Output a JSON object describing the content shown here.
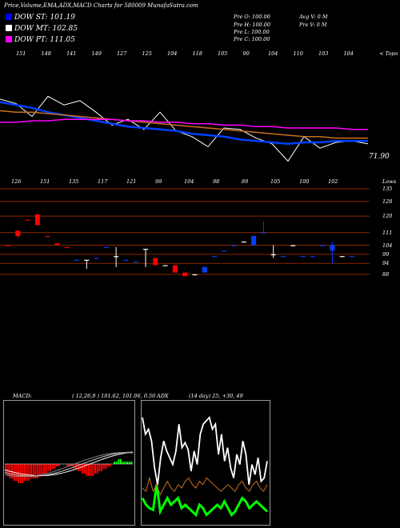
{
  "header": {
    "title": "Price,Volume,EMA,ADX,MACD Charts for 580009 MunafaSutra.com"
  },
  "dow": [
    {
      "label": "DOW ST: 101.19",
      "color": "#0000ff"
    },
    {
      "label": "DOW MT: 102.85",
      "color": "#ffffff"
    },
    {
      "label": "DOW PT: 111.05",
      "color": "#ff00ff"
    }
  ],
  "ohlc": {
    "o": "Pre  O: 100.00",
    "h": "Pre  H: 100.00",
    "l": "Pre  L: 100.00",
    "c": "Pre  C: 100.00"
  },
  "volume_info": {
    "avg": "Avg V: 0  M",
    "pre": "Pre  V: 0  M"
  },
  "top_tick_label": "< Topo",
  "bottom_tick_label": "Lows",
  "price_label": "71.90",
  "chart_data": [
    {
      "type": "line",
      "name": "ema-price-panel",
      "top_labels": [
        "151",
        "148",
        "141",
        "149",
        "127",
        "125",
        "104",
        "118",
        "105",
        "90",
        "104",
        "110",
        "103",
        "104"
      ],
      "bottom_labels": [
        "126",
        "151",
        "135",
        "117",
        "121",
        "99",
        "104",
        "98",
        "89",
        "105",
        "100",
        "102"
      ],
      "right_axis_ticks": [
        "135",
        "128",
        "120",
        "111",
        "104",
        "99",
        "94",
        "88"
      ],
      "series": [
        {
          "color": "#ffffff",
          "values": [
            130,
            127,
            118,
            132,
            126,
            129,
            121,
            112,
            116,
            109,
            121,
            108,
            104,
            97,
            110,
            109,
            103,
            99,
            87,
            104,
            96,
            100,
            101,
            99
          ]
        },
        {
          "color": "#0040ff",
          "values": [
            128,
            126,
            124,
            121,
            119,
            117,
            115,
            113,
            111,
            110,
            109,
            108,
            106,
            105,
            104,
            102,
            101,
            100,
            99,
            100,
            100,
            101,
            101,
            101
          ]
        },
        {
          "color": "#c87020",
          "values": [
            122,
            121,
            121,
            120,
            119,
            118,
            117,
            116,
            115,
            114,
            113,
            112,
            111,
            110,
            109,
            108,
            107,
            106,
            105,
            104,
            104,
            103,
            103,
            103
          ]
        },
        {
          "color": "#ff00ff",
          "values": [
            114,
            114,
            115,
            115,
            116,
            116,
            116,
            116,
            115,
            115,
            114,
            114,
            113,
            113,
            112,
            112,
            111,
            111,
            110,
            110,
            110,
            110,
            109,
            109
          ]
        }
      ]
    },
    {
      "type": "candlestick",
      "name": "price-candles",
      "yticks": [
        135,
        128,
        120,
        111,
        104,
        99,
        94,
        88
      ],
      "candles": [
        {
          "o": 104,
          "c": 104,
          "h": 104,
          "l": 104,
          "color": "#ff0000"
        },
        {
          "o": 112,
          "c": 109,
          "h": 112,
          "l": 108,
          "color": "#ff0000"
        },
        {
          "o": 118,
          "c": 118,
          "h": 118,
          "l": 118,
          "color": "#ff0000"
        },
        {
          "o": 121,
          "c": 115,
          "h": 121,
          "l": 115,
          "color": "#ff0000"
        },
        {
          "o": 109,
          "c": 109,
          "h": 109,
          "l": 109,
          "color": "#ff0000"
        },
        {
          "o": 105,
          "c": 104,
          "h": 105,
          "l": 104,
          "color": "#ff0000"
        },
        {
          "o": 103,
          "c": 103,
          "h": 103,
          "l": 103,
          "color": "#ff0000"
        },
        {
          "o": 96,
          "c": 96,
          "h": 96,
          "l": 96,
          "color": "#0040ff"
        },
        {
          "o": 96,
          "c": 96,
          "h": 96,
          "l": 91,
          "color": "#ffffff"
        },
        {
          "o": 97,
          "c": 97,
          "h": 97,
          "l": 97,
          "color": "#0040ff"
        },
        {
          "o": 103,
          "c": 103,
          "h": 103,
          "l": 103,
          "color": "#0040ff"
        },
        {
          "o": 98,
          "c": 98,
          "h": 103,
          "l": 92,
          "color": "#ffffff"
        },
        {
          "o": 96,
          "c": 96,
          "h": 96,
          "l": 96,
          "color": "#0040ff"
        },
        {
          "o": 95,
          "c": 95,
          "h": 95,
          "l": 95,
          "color": "#0040ff"
        },
        {
          "o": 102,
          "c": 102,
          "h": 102,
          "l": 92,
          "color": "#ffffff"
        },
        {
          "o": 97,
          "c": 93,
          "h": 97,
          "l": 93,
          "color": "#ff0000"
        },
        {
          "o": 93,
          "c": 93,
          "h": 93,
          "l": 93,
          "color": "#ffffff"
        },
        {
          "o": 93,
          "c": 89,
          "h": 93,
          "l": 89,
          "color": "#ff0000"
        },
        {
          "o": 89,
          "c": 87,
          "h": 89,
          "l": 87,
          "color": "#ff0000"
        },
        {
          "o": 88,
          "c": 88,
          "h": 88,
          "l": 88,
          "color": "#ffffff"
        },
        {
          "o": 89,
          "c": 92,
          "h": 92,
          "l": 89,
          "color": "#0040ff"
        },
        {
          "o": 98,
          "c": 98,
          "h": 98,
          "l": 98,
          "color": "#0040ff"
        },
        {
          "o": 101,
          "c": 101,
          "h": 101,
          "l": 101,
          "color": "#0040ff"
        },
        {
          "o": 104,
          "c": 104,
          "h": 104,
          "l": 104,
          "color": "#0040ff"
        },
        {
          "o": 106,
          "c": 106,
          "h": 106,
          "l": 106,
          "color": "#ffffff"
        },
        {
          "o": 104,
          "c": 109,
          "h": 109,
          "l": 104,
          "color": "#0040ff"
        },
        {
          "o": 111,
          "c": 111,
          "h": 117,
          "l": 111,
          "color": "#0040ff"
        },
        {
          "o": 99,
          "c": 99,
          "h": 104,
          "l": 97,
          "color": "#ffffff"
        },
        {
          "o": 98,
          "c": 98,
          "h": 98,
          "l": 98,
          "color": "#0040ff"
        },
        {
          "o": 104,
          "c": 104,
          "h": 104,
          "l": 104,
          "color": "#ffffff"
        },
        {
          "o": 98,
          "c": 98,
          "h": 98,
          "l": 98,
          "color": "#0040ff"
        },
        {
          "o": 98,
          "c": 98,
          "h": 98,
          "l": 98,
          "color": "#0040ff"
        },
        {
          "o": 104,
          "c": 104,
          "h": 104,
          "l": 104,
          "color": "#0040ff"
        },
        {
          "o": 101,
          "c": 104,
          "h": 106,
          "l": 94,
          "color": "#0040ff"
        },
        {
          "o": 98,
          "c": 98,
          "h": 98,
          "l": 98,
          "color": "#ffffff"
        },
        {
          "o": 98,
          "c": 98,
          "h": 98,
          "l": 98,
          "color": "#0040ff"
        }
      ]
    },
    {
      "type": "bar",
      "name": "macd",
      "label": "MACD:",
      "values_text": "( 12,26,9 ) 101.62, 101.06, 0.56",
      "histogram": [
        -4,
        -5,
        -6,
        -6,
        -7,
        -7,
        -8,
        -8,
        -8,
        -7,
        -7,
        -7,
        -6,
        -6,
        -6,
        -6,
        -5,
        -5,
        -4,
        -4,
        -3,
        -3,
        -2,
        -2,
        -1,
        -1,
        0,
        0,
        0,
        -1,
        -1,
        -1,
        -2,
        -2,
        -3,
        -3,
        -4,
        -4,
        -5,
        -5,
        -5,
        -5,
        -4,
        -4,
        -3,
        -3,
        -2,
        -2,
        -1,
        -1,
        0,
        1,
        1,
        2,
        2,
        1,
        1,
        1,
        1,
        1
      ]
    },
    {
      "type": "line",
      "name": "adx",
      "label": "ADX",
      "values_text": "(14  day) 25,  +30, 49",
      "series": [
        {
          "color": "#ffffff",
          "values": [
            62,
            52,
            55,
            48,
            32,
            22,
            38,
            48,
            42,
            38,
            34,
            42,
            58,
            44,
            47,
            43,
            30,
            42,
            34,
            52,
            58,
            60,
            62,
            55,
            58,
            40,
            52,
            36,
            44,
            32,
            26,
            40,
            34,
            48,
            40,
            22,
            34,
            28,
            38,
            24,
            26,
            36
          ]
        },
        {
          "color": "#00ff00",
          "values": [
            14,
            10,
            8,
            7,
            22,
            6,
            10,
            14,
            10,
            12,
            14,
            8,
            10,
            8,
            6,
            4,
            10,
            8,
            4,
            6,
            8,
            10,
            8,
            12,
            8,
            4,
            6,
            10,
            14,
            12,
            8,
            10,
            12,
            10,
            8,
            6
          ]
        },
        {
          "color": "#c87020",
          "values": [
            20,
            18,
            26,
            18,
            22,
            16,
            20,
            24,
            20,
            18,
            22,
            20,
            24,
            26,
            22,
            20,
            24,
            22,
            26,
            24,
            22,
            20,
            18,
            20,
            22,
            20,
            18,
            22,
            24,
            20,
            18,
            22,
            24,
            20,
            18,
            22
          ]
        }
      ]
    }
  ]
}
